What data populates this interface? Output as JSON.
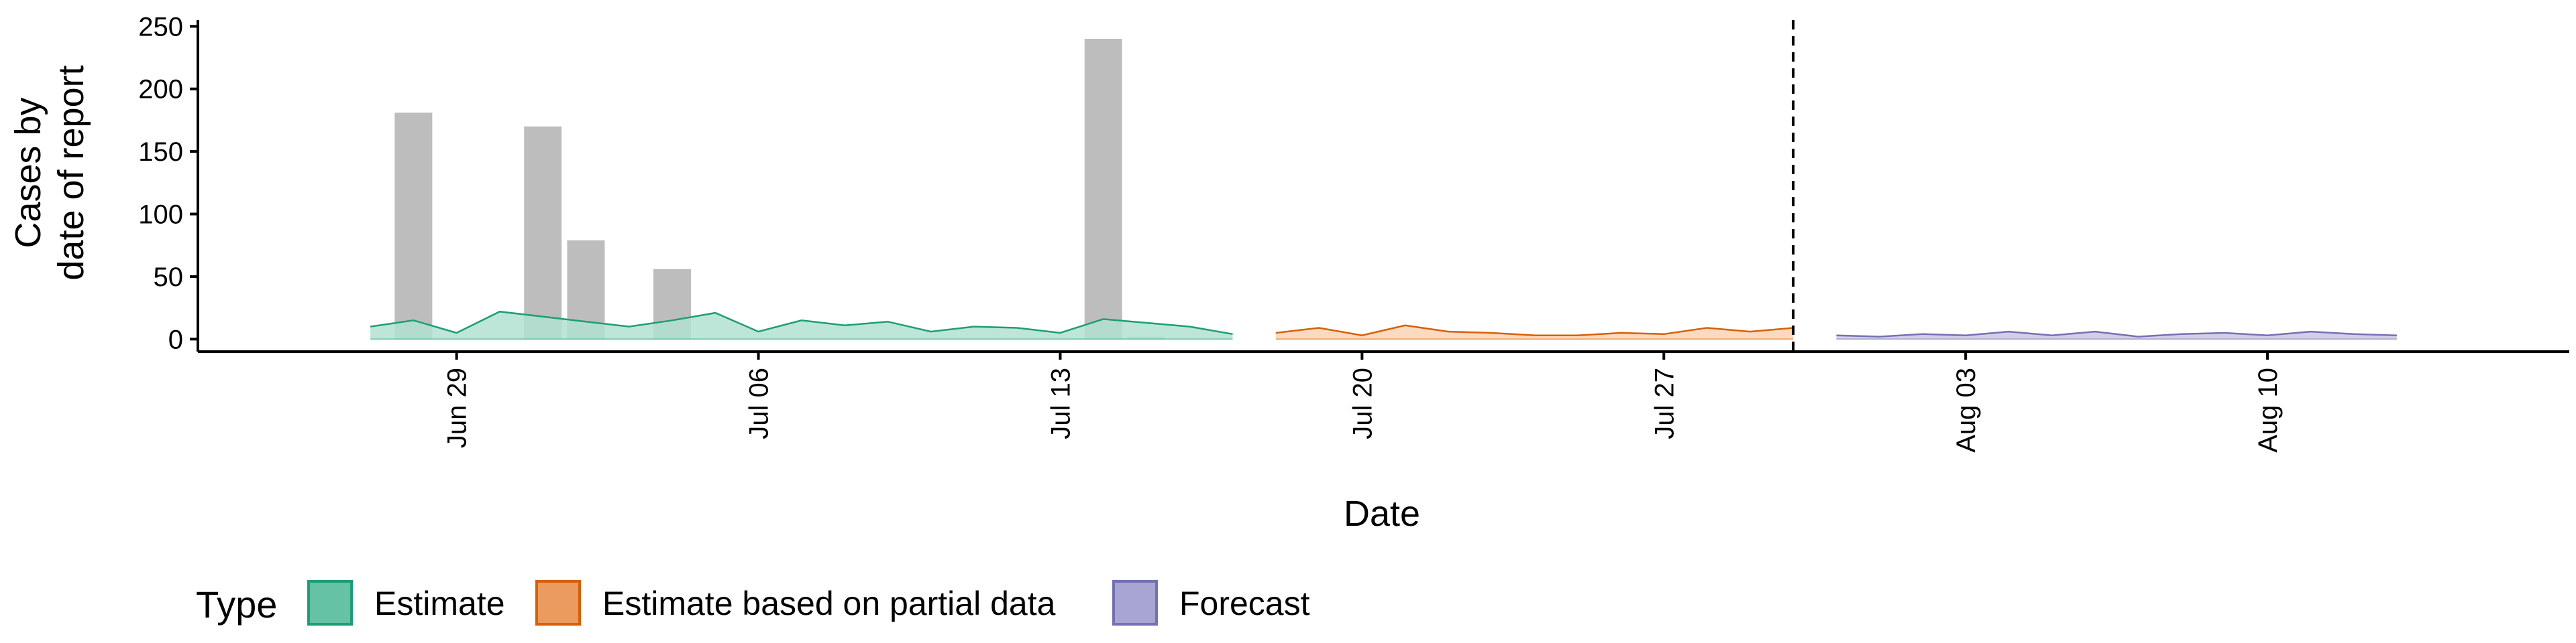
{
  "chart_data": {
    "type": "area",
    "title": "",
    "xlabel": "Date",
    "ylabel_lines": [
      "Cases by",
      "date of report"
    ],
    "ylim": [
      -10,
      255
    ],
    "yticks": [
      0,
      50,
      100,
      150,
      200,
      250
    ],
    "xlim": [
      "2021-06-23",
      "2021-08-17"
    ],
    "xticks": [
      {
        "date": "2021-06-29",
        "label": "Jun 29"
      },
      {
        "date": "2021-07-06",
        "label": "Jul 06"
      },
      {
        "date": "2021-07-13",
        "label": "Jul 13"
      },
      {
        "date": "2021-07-20",
        "label": "Jul 20"
      },
      {
        "date": "2021-07-27",
        "label": "Jul 27"
      },
      {
        "date": "2021-08-03",
        "label": "Aug 03"
      },
      {
        "date": "2021-08-10",
        "label": "Aug 10"
      }
    ],
    "vline": {
      "date": "2021-07-30",
      "style": "dashed"
    },
    "bars": {
      "color": "#bdbdbd",
      "points": [
        {
          "date": "2021-06-28",
          "value": 181
        },
        {
          "date": "2021-07-01",
          "value": 170
        },
        {
          "date": "2021-07-02",
          "value": 79
        },
        {
          "date": "2021-07-04",
          "value": 56
        },
        {
          "date": "2021-07-14",
          "value": 240
        },
        {
          "date": "2021-07-15",
          "value": 2
        }
      ]
    },
    "series": [
      {
        "name": "Estimate",
        "fill": "#b3e2d1",
        "stroke": "#1b9e77",
        "x": [
          "2021-06-27",
          "2021-06-28",
          "2021-06-29",
          "2021-06-30",
          "2021-07-01",
          "2021-07-02",
          "2021-07-03",
          "2021-07-04",
          "2021-07-05",
          "2021-07-06",
          "2021-07-07",
          "2021-07-08",
          "2021-07-09",
          "2021-07-10",
          "2021-07-11",
          "2021-07-12",
          "2021-07-13",
          "2021-07-14",
          "2021-07-15",
          "2021-07-16",
          "2021-07-17"
        ],
        "upper": [
          10,
          15,
          5,
          22,
          18,
          14,
          10,
          15,
          21,
          6,
          15,
          11,
          14,
          6,
          10,
          9,
          5,
          16,
          13,
          10,
          4
        ],
        "lower": [
          0,
          0,
          0,
          0,
          0,
          0,
          0,
          0,
          0,
          0,
          0,
          0,
          0,
          0,
          0,
          0,
          0,
          0,
          0,
          0,
          0
        ]
      },
      {
        "name": "Estimate based on partial data",
        "fill": "#fbd3b5",
        "stroke": "#d95f02",
        "x": [
          "2021-07-18",
          "2021-07-19",
          "2021-07-20",
          "2021-07-21",
          "2021-07-22",
          "2021-07-23",
          "2021-07-24",
          "2021-07-25",
          "2021-07-26",
          "2021-07-27",
          "2021-07-28",
          "2021-07-29",
          "2021-07-30"
        ],
        "upper": [
          5,
          9,
          3,
          11,
          6,
          5,
          3,
          3,
          5,
          4,
          9,
          6,
          9
        ],
        "lower": [
          0,
          0,
          0,
          0,
          0,
          0,
          0,
          0,
          0,
          0,
          0,
          0,
          0
        ]
      },
      {
        "name": "Forecast",
        "fill": "#cac8e4",
        "stroke": "#7570b3",
        "x": [
          "2021-07-31",
          "2021-08-01",
          "2021-08-02",
          "2021-08-03",
          "2021-08-04",
          "2021-08-05",
          "2021-08-06",
          "2021-08-07",
          "2021-08-08",
          "2021-08-09",
          "2021-08-10",
          "2021-08-11",
          "2021-08-12",
          "2021-08-13"
        ],
        "upper": [
          3,
          2,
          4,
          3,
          6,
          3,
          6,
          2,
          4,
          5,
          3,
          6,
          4,
          3
        ],
        "lower": [
          0,
          0,
          0,
          0,
          0,
          0,
          0,
          0,
          0,
          0,
          0,
          0,
          0,
          0
        ]
      }
    ],
    "legend": {
      "title": "Type",
      "position": "bottom",
      "entries": [
        {
          "label": "Estimate",
          "fill": "#66c2a5",
          "stroke": "#1b9e77"
        },
        {
          "label": "Estimate based on partial data",
          "fill": "#ec9b60",
          "stroke": "#d95f02"
        },
        {
          "label": "Forecast",
          "fill": "#a9a5d2",
          "stroke": "#7570b3"
        }
      ]
    }
  }
}
